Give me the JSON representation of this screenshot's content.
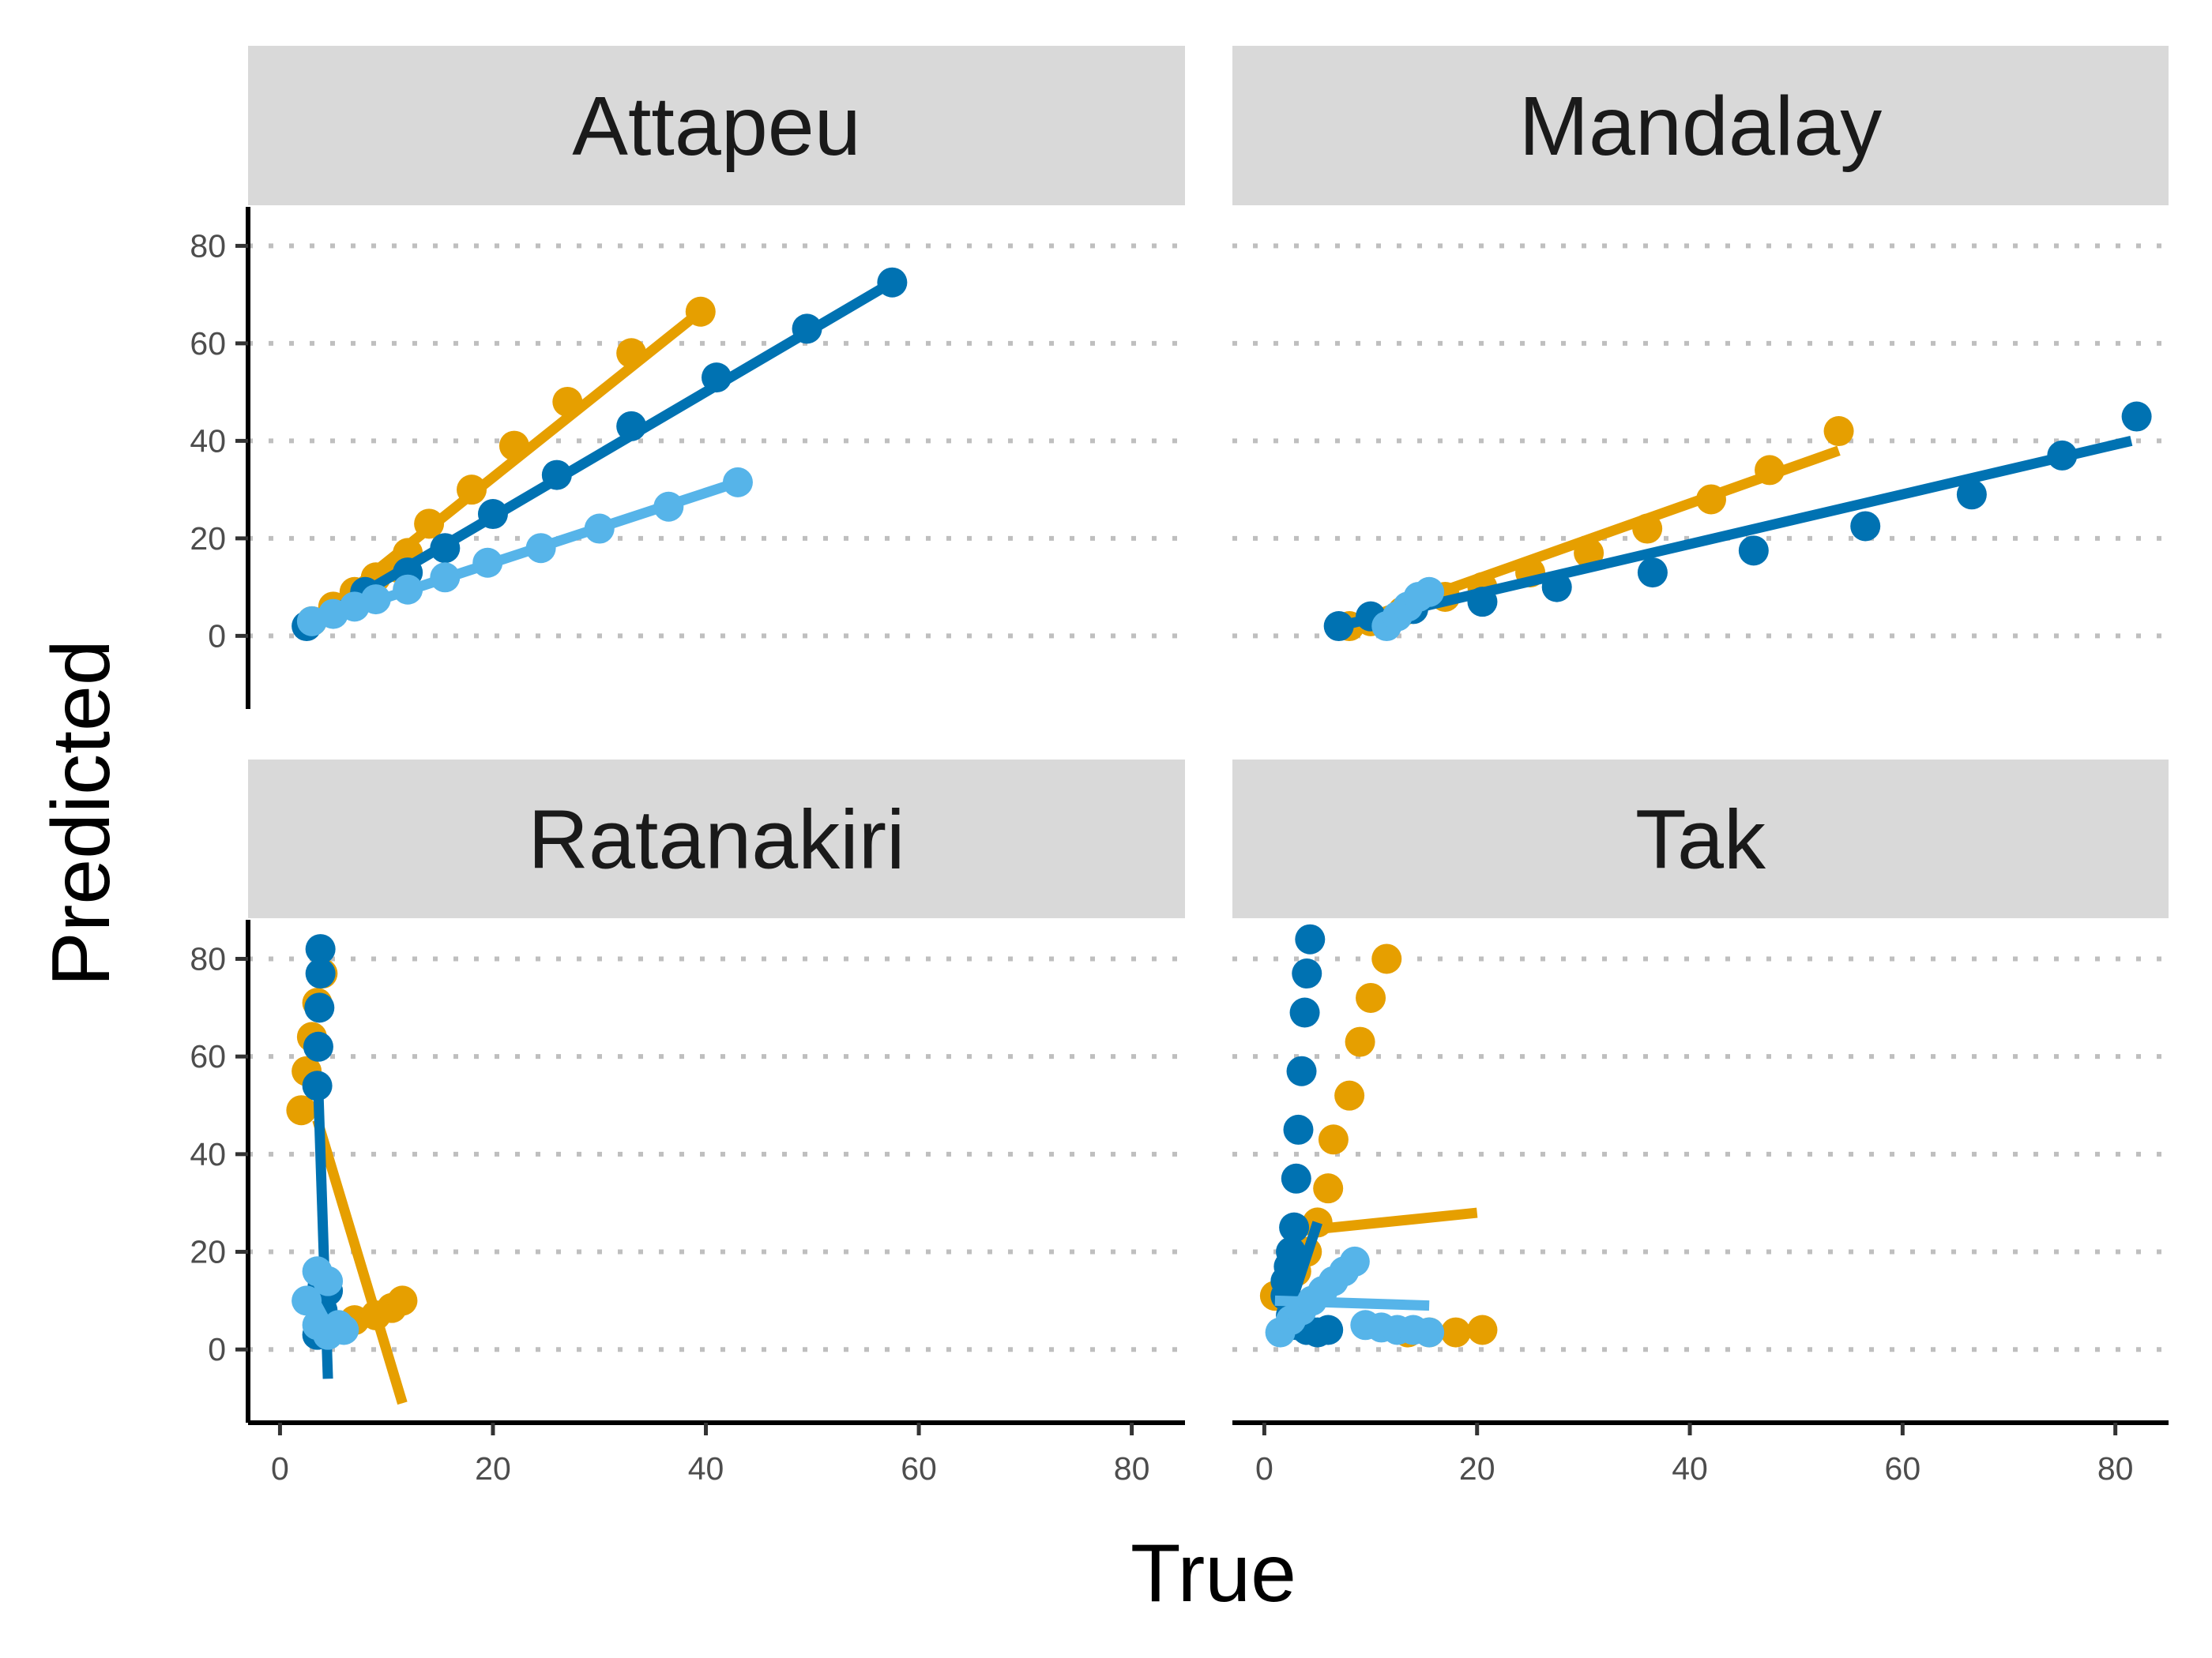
{
  "chart_data": {
    "type": "scatter",
    "xlabel": "True",
    "ylabel": "Predicted",
    "xlim": [
      -3,
      85
    ],
    "ylim": [
      -15,
      88
    ],
    "x_ticks": [
      0,
      20,
      40,
      60,
      80
    ],
    "y_ticks": [
      0,
      20,
      40,
      60,
      80
    ],
    "grid": "horizontal dotted",
    "series_colors": [
      "#E69F00",
      "#0072B2",
      "#56B4E9"
    ],
    "panels": [
      {
        "title": "Attapeu",
        "series": [
          {
            "color": "#E69F00",
            "points": [
              [
                3,
                3
              ],
              [
                5,
                6
              ],
              [
                7,
                9
              ],
              [
                9,
                12
              ],
              [
                11,
                14
              ],
              [
                12,
                17
              ],
              [
                14,
                23
              ],
              [
                18,
                30
              ],
              [
                22,
                39
              ],
              [
                27,
                48
              ],
              [
                33,
                58
              ],
              [
                39.5,
                66.5
              ]
            ],
            "line": [
              [
                2.5,
                2
              ],
              [
                39.5,
                66.5
              ]
            ]
          },
          {
            "color": "#0072B2",
            "points": [
              [
                2.5,
                2
              ],
              [
                8,
                9
              ],
              [
                12,
                13
              ],
              [
                15.5,
                18
              ],
              [
                20,
                25
              ],
              [
                26,
                33
              ],
              [
                33,
                43
              ],
              [
                41,
                53
              ],
              [
                49.5,
                63
              ],
              [
                57.5,
                72.5
              ]
            ],
            "line": [
              [
                2.5,
                2
              ],
              [
                57.5,
                72.5
              ]
            ]
          },
          {
            "color": "#56B4E9",
            "points": [
              [
                3,
                3
              ],
              [
                5,
                4.5
              ],
              [
                7,
                6
              ],
              [
                9,
                7.5
              ],
              [
                12,
                9.5
              ],
              [
                15.5,
                12
              ],
              [
                19.5,
                15
              ],
              [
                24.5,
                18
              ],
              [
                30,
                22
              ],
              [
                36.5,
                26.5
              ],
              [
                43,
                31.5
              ]
            ],
            "line": [
              [
                2.5,
                2.5
              ],
              [
                43,
                31.5
              ]
            ]
          }
        ]
      },
      {
        "title": "Mandalay",
        "series": [
          {
            "color": "#E69F00",
            "points": [
              [
                8,
                2
              ],
              [
                10,
                3
              ],
              [
                13,
                5
              ],
              [
                17,
                8
              ],
              [
                20.5,
                10
              ],
              [
                25,
                13
              ],
              [
                30.5,
                17
              ],
              [
                36,
                22
              ],
              [
                42,
                28
              ],
              [
                47.5,
                34
              ],
              [
                54,
                42
              ]
            ],
            "line": [
              [
                7.5,
                2
              ],
              [
                54,
                38
              ]
            ]
          },
          {
            "color": "#0072B2",
            "points": [
              [
                7,
                2
              ],
              [
                10,
                4
              ],
              [
                14,
                5.5
              ],
              [
                20.5,
                7
              ],
              [
                27.5,
                10
              ],
              [
                36.5,
                13
              ],
              [
                46,
                17.5
              ],
              [
                56.5,
                22.5
              ],
              [
                66.5,
                29
              ],
              [
                75,
                37
              ],
              [
                82,
                45
              ]
            ],
            "line": [
              [
                7,
                2
              ],
              [
                81.5,
                40
              ]
            ]
          },
          {
            "color": "#56B4E9",
            "points": [
              [
                11.5,
                2
              ],
              [
                12.5,
                4
              ],
              [
                13.5,
                6
              ],
              [
                14.5,
                8
              ],
              [
                15.5,
                9
              ]
            ],
            "line": [
              [
                11,
                2
              ],
              [
                15.5,
                9
              ]
            ]
          }
        ]
      },
      {
        "title": "Ratanakiri",
        "series": [
          {
            "color": "#E69F00",
            "points": [
              [
                2,
                49
              ],
              [
                2.5,
                57
              ],
              [
                3,
                64
              ],
              [
                3.5,
                71
              ],
              [
                4,
                77
              ],
              [
                7,
                6
              ],
              [
                9,
                7
              ],
              [
                10.5,
                8.5
              ],
              [
                11.5,
                10
              ]
            ],
            "line": [
              [
                3.5,
                47
              ],
              [
                11.5,
                -11
              ]
            ]
          },
          {
            "color": "#0072B2",
            "points": [
              [
                3.8,
                82
              ],
              [
                3.8,
                77
              ],
              [
                3.7,
                70
              ],
              [
                3.6,
                62
              ],
              [
                3.5,
                54
              ],
              [
                4,
                13
              ],
              [
                4.5,
                12
              ],
              [
                4,
                8
              ],
              [
                3.5,
                3
              ]
            ],
            "line": [
              [
                3.6,
                53
              ],
              [
                4.5,
                -6
              ]
            ]
          },
          {
            "color": "#56B4E9",
            "points": [
              [
                2.5,
                10
              ],
              [
                3.5,
                16
              ],
              [
                4.5,
                14
              ],
              [
                5.5,
                5
              ],
              [
                6,
                4
              ],
              [
                4.5,
                3
              ],
              [
                3.5,
                5
              ]
            ],
            "line": [
              [
                3,
                11
              ],
              [
                4.5,
                5
              ]
            ]
          }
        ]
      },
      {
        "title": "Tak",
        "series": [
          {
            "color": "#E69F00",
            "points": [
              [
                11.5,
                80
              ],
              [
                10,
                72
              ],
              [
                9,
                63
              ],
              [
                8,
                52
              ],
              [
                6.5,
                43
              ],
              [
                6,
                33
              ],
              [
                5,
                26
              ],
              [
                4,
                20
              ],
              [
                3,
                16
              ],
              [
                1,
                11
              ],
              [
                13.5,
                3.5
              ],
              [
                15.5,
                3.5
              ],
              [
                18,
                3.5
              ],
              [
                20.5,
                4
              ]
            ],
            "line": [
              [
                2,
                24
              ],
              [
                20,
                28
              ]
            ]
          },
          {
            "color": "#0072B2",
            "points": [
              [
                4.3,
                84
              ],
              [
                4,
                77
              ],
              [
                3.8,
                69
              ],
              [
                3.5,
                57
              ],
              [
                3.2,
                45
              ],
              [
                3,
                35
              ],
              [
                2.8,
                25
              ],
              [
                2.5,
                20
              ],
              [
                2.3,
                17
              ],
              [
                2,
                14
              ],
              [
                2,
                11
              ],
              [
                2.5,
                7
              ],
              [
                3,
                5
              ],
              [
                4,
                4
              ],
              [
                5,
                3.5
              ],
              [
                6,
                4
              ]
            ],
            "line": [
              [
                2,
                6
              ],
              [
                5,
                26
              ]
            ]
          },
          {
            "color": "#56B4E9",
            "points": [
              [
                1.5,
                3.5
              ],
              [
                2.5,
                6
              ],
              [
                3.5,
                8
              ],
              [
                4.5,
                10
              ],
              [
                5.5,
                12
              ],
              [
                6.5,
                14
              ],
              [
                7.5,
                16
              ],
              [
                8.5,
                18
              ],
              [
                9.5,
                5
              ],
              [
                11,
                4.5
              ],
              [
                12.5,
                4
              ],
              [
                14,
                4
              ],
              [
                15.5,
                3.5
              ]
            ],
            "line": [
              [
                1,
                10
              ],
              [
                15.5,
                9
              ]
            ]
          }
        ]
      }
    ]
  }
}
